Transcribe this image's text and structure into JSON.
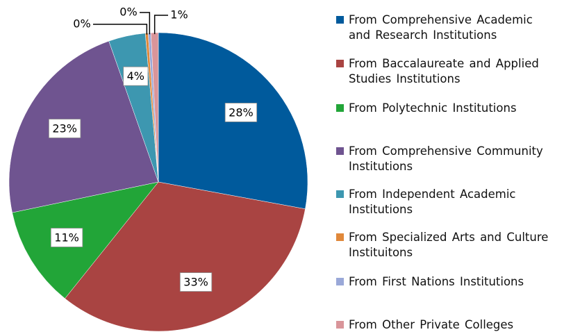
{
  "chart_data": {
    "type": "pie",
    "categories": [
      "From Comprehensive Academic and Research Institutions",
      "From Baccalaureate and Applied Studies Institutions",
      "From Polytechnic Institutions",
      "From Comprehensive Community Institutions",
      "From Independent Academic Institutions",
      "From Specialized Arts and Culture Instituitons",
      "From First Nations Institutions",
      "From Other Private Colleges"
    ],
    "values": [
      28,
      33,
      11,
      23,
      4,
      0.3,
      0.3,
      0.8
    ],
    "value_labels": [
      "28%",
      "33%",
      "11%",
      "23%",
      "4%",
      "0%",
      "0%",
      "1%"
    ],
    "colors": [
      "#005a9c",
      "#a94442",
      "#22a538",
      "#6f5490",
      "#3d97b0",
      "#e0883a",
      "#9aa8d8",
      "#d9959a"
    ],
    "legend": "right"
  }
}
